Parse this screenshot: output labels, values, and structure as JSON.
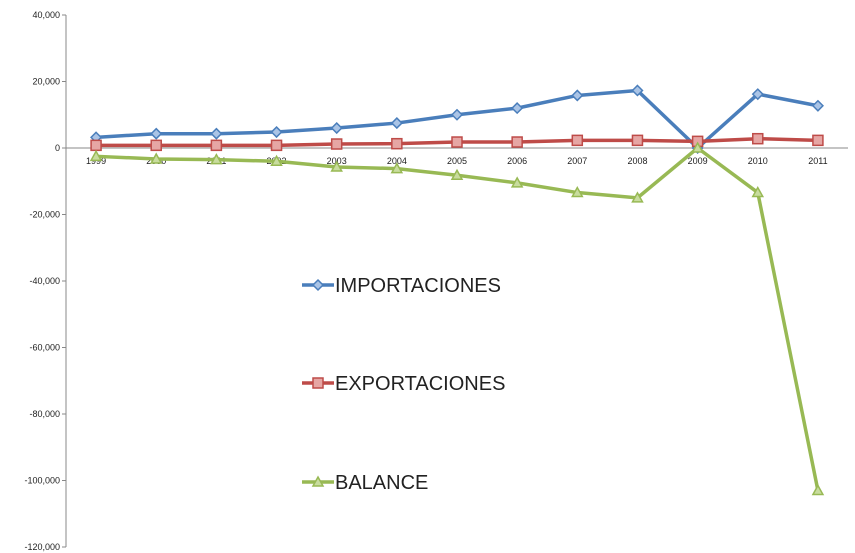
{
  "chart_data": {
    "type": "line",
    "title": "",
    "xlabel": "",
    "ylabel": "",
    "ylim": [
      -120000,
      40000
    ],
    "y_ticks": [
      40000,
      20000,
      0,
      -20000,
      -40000,
      -60000,
      -80000,
      -100000,
      -120000
    ],
    "y_tick_labels": [
      "40,000",
      "20,000",
      "0",
      "-20,000",
      "-40,000",
      "-60,000",
      "-80,000",
      "-100,000",
      "-120,000"
    ],
    "categories": [
      "1999",
      "2000",
      "2001",
      "2002",
      "2003",
      "2004",
      "2005",
      "2006",
      "2007",
      "2008",
      "2009",
      "2010",
      "2011"
    ],
    "grid": false,
    "legend_position": "center",
    "series": [
      {
        "name": "IMPORTACIONES",
        "color": "#4A7EBB",
        "marker": "diamond",
        "values": [
          3200,
          4300,
          4300,
          4800,
          6000,
          7500,
          10000,
          12000,
          15800,
          17300,
          0,
          16200,
          12700
        ]
      },
      {
        "name": "EXPORTACIONES",
        "color": "#BE4B48",
        "marker": "square",
        "values": [
          800,
          800,
          800,
          800,
          1200,
          1300,
          1800,
          1800,
          2300,
          2300,
          2000,
          2800,
          2300
        ]
      },
      {
        "name": "BALANCE",
        "color": "#98B954",
        "marker": "triangle",
        "values": [
          -2500,
          -3300,
          -3500,
          -4000,
          -5700,
          -6200,
          -8200,
          -10500,
          -13400,
          -15000,
          0,
          -13400,
          -103000
        ]
      }
    ]
  }
}
